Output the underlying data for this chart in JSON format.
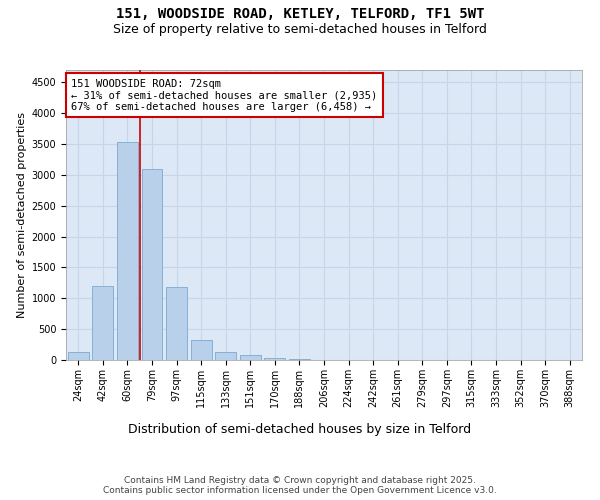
{
  "title_line1": "151, WOODSIDE ROAD, KETLEY, TELFORD, TF1 5WT",
  "title_line2": "Size of property relative to semi-detached houses in Telford",
  "xlabel": "Distribution of semi-detached houses by size in Telford",
  "ylabel": "Number of semi-detached properties",
  "categories": [
    "24sqm",
    "42sqm",
    "60sqm",
    "79sqm",
    "97sqm",
    "115sqm",
    "133sqm",
    "151sqm",
    "170sqm",
    "188sqm",
    "206sqm",
    "224sqm",
    "242sqm",
    "261sqm",
    "279sqm",
    "297sqm",
    "315sqm",
    "333sqm",
    "352sqm",
    "370sqm",
    "388sqm"
  ],
  "values": [
    130,
    1200,
    3530,
    3090,
    1190,
    330,
    125,
    75,
    35,
    10,
    5,
    2,
    1,
    0,
    0,
    0,
    0,
    0,
    0,
    0,
    0
  ],
  "bar_color": "#b8d0ea",
  "bar_edge_color": "#7aaad0",
  "property_line_x": 2.5,
  "property_line_color": "#cc0000",
  "annotation_text": "151 WOODSIDE ROAD: 72sqm\n← 31% of semi-detached houses are smaller (2,935)\n67% of semi-detached houses are larger (6,458) →",
  "annotation_box_color": "#ffffff",
  "annotation_box_edge": "#cc0000",
  "ylim": [
    0,
    4700
  ],
  "yticks": [
    0,
    500,
    1000,
    1500,
    2000,
    2500,
    3000,
    3500,
    4000,
    4500
  ],
  "grid_color": "#c8d4e8",
  "background_color": "#dce8f5",
  "footer_text": "Contains HM Land Registry data © Crown copyright and database right 2025.\nContains public sector information licensed under the Open Government Licence v3.0.",
  "title_fontsize": 10,
  "subtitle_fontsize": 9,
  "xlabel_fontsize": 9,
  "ylabel_fontsize": 8,
  "tick_fontsize": 7,
  "annotation_fontsize": 7.5,
  "footer_fontsize": 6.5
}
